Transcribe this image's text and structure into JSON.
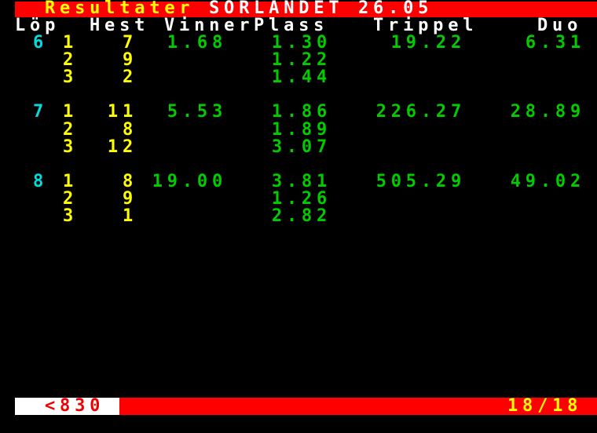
{
  "palette": {
    "background": "#000000",
    "red": "#FF0000",
    "white": "#FFFFFF",
    "yellow": "#FFFF00",
    "cyan": "#00DDDD",
    "green": "#00CC00",
    "link_red": "#EE0000"
  },
  "title_bar": {
    "section_label": "Resultater",
    "track_name": "SÖRLANDET",
    "date": "26.05"
  },
  "table": {
    "headers": {
      "lop": "Löp",
      "hest": "Hest",
      "vinner": "Vinner",
      "plass": "Plass",
      "trippel": "Trippel",
      "duo": "Duo"
    },
    "races": [
      {
        "race": "6",
        "results": [
          {
            "place": "1",
            "horse": "7",
            "vinner": "1.68",
            "plass": "1.30",
            "trippel": "19.22",
            "duo": "6.31"
          },
          {
            "place": "2",
            "horse": "9",
            "vinner": "",
            "plass": "1.22",
            "trippel": "",
            "duo": ""
          },
          {
            "place": "3",
            "horse": "2",
            "vinner": "",
            "plass": "1.44",
            "trippel": "",
            "duo": ""
          }
        ]
      },
      {
        "race": "7",
        "results": [
          {
            "place": "1",
            "horse": "11",
            "vinner": "5.53",
            "plass": "1.86",
            "trippel": "226.27",
            "duo": "28.89"
          },
          {
            "place": "2",
            "horse": "8",
            "vinner": "",
            "plass": "1.89",
            "trippel": "",
            "duo": ""
          },
          {
            "place": "3",
            "horse": "12",
            "vinner": "",
            "plass": "3.07",
            "trippel": "",
            "duo": ""
          }
        ]
      },
      {
        "race": "8",
        "results": [
          {
            "place": "1",
            "horse": "8",
            "vinner": "19.00",
            "plass": "3.81",
            "trippel": "505.29",
            "duo": "49.02"
          },
          {
            "place": "2",
            "horse": "9",
            "vinner": "",
            "plass": "1.26",
            "trippel": "",
            "duo": ""
          },
          {
            "place": "3",
            "horse": "1",
            "vinner": "",
            "plass": "2.82",
            "trippel": "",
            "duo": ""
          }
        ]
      }
    ]
  },
  "footer_bar": {
    "page_link": "<830",
    "page_indicator": "18/18"
  }
}
